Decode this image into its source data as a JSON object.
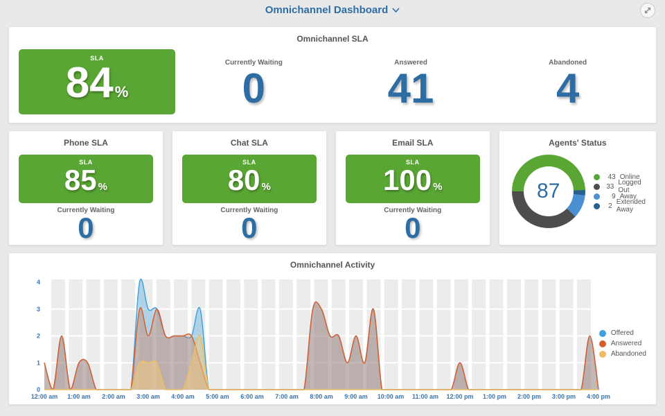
{
  "header": {
    "title": "Omnichannel Dashboard"
  },
  "sla_overview": {
    "title": "Omnichannel SLA",
    "gauge": {
      "label": "SLA",
      "value": "84",
      "unit": "%"
    },
    "stats": [
      {
        "label": "Currently Waiting",
        "value": "0"
      },
      {
        "label": "Answered",
        "value": "41"
      },
      {
        "label": "Abandoned",
        "value": "4"
      }
    ]
  },
  "channels": [
    {
      "title": "Phone SLA",
      "gauge_label": "SLA",
      "value": "85",
      "unit": "%",
      "waiting_label": "Currently Waiting",
      "waiting": "0"
    },
    {
      "title": "Chat SLA",
      "gauge_label": "SLA",
      "value": "80",
      "unit": "%",
      "waiting_label": "Currently Waiting",
      "waiting": "0"
    },
    {
      "title": "Email SLA",
      "gauge_label": "SLA",
      "value": "100",
      "unit": "%",
      "waiting_label": "Currently Waiting",
      "waiting": "0"
    }
  ],
  "agents": {
    "title": "Agents' Status",
    "total": "87",
    "legend": [
      {
        "value": 43,
        "label": "Online",
        "color": "#5aa634"
      },
      {
        "value": 33,
        "label": "Logged Out",
        "color": "#4d4d4d"
      },
      {
        "value": 9,
        "label": "Away",
        "color": "#4a90d2"
      },
      {
        "value": 2,
        "label": "Extended Away",
        "color": "#28608f"
      }
    ],
    "draw_order": [
      0,
      3,
      2,
      1
    ],
    "start_angle": 270
  },
  "chart_data": {
    "type": "area",
    "title": "Omnichannel Activity",
    "x_start": "12:00 am",
    "x_step_minutes": 15,
    "x_tick_labels": [
      "12:00 am",
      "1:00 am",
      "2:00 am",
      "3:00 am",
      "4:00 am",
      "5:00 am",
      "6:00 am",
      "7:00 am",
      "8:00 am",
      "9:00 am",
      "10:00 am",
      "11:00 am",
      "12:00 pm",
      "1:00 pm",
      "2:00 pm",
      "3:00 pm",
      "4:00 pm"
    ],
    "ylim": [
      0,
      4
    ],
    "y_ticks": [
      0,
      1,
      2,
      3,
      4
    ],
    "grid": "striped-vertical",
    "legend_position": "right",
    "series": [
      {
        "name": "Offered",
        "color": "#3fa2dc",
        "fill": "rgba(63,162,220,0.35)",
        "values": [
          1,
          0,
          2,
          0,
          1,
          1,
          0,
          0,
          0,
          0,
          0,
          4,
          3,
          3,
          2,
          2,
          2,
          2,
          3,
          0,
          0,
          0,
          0,
          0,
          0,
          0,
          0,
          0,
          0,
          0,
          0,
          3,
          3,
          2,
          2,
          1,
          2,
          1,
          3,
          0,
          0,
          0,
          0,
          0,
          0,
          0,
          0,
          0,
          1,
          0,
          0,
          0,
          0,
          0,
          0,
          0,
          0,
          0,
          0,
          0,
          0,
          0,
          0,
          2,
          0
        ]
      },
      {
        "name": "Answered",
        "color": "#d65f30",
        "fill": "rgba(214,95,48,0.30)",
        "values": [
          1,
          0,
          2,
          0,
          1,
          1,
          0,
          0,
          0,
          0,
          0,
          3,
          2,
          3,
          2,
          2,
          2,
          2,
          1,
          0,
          0,
          0,
          0,
          0,
          0,
          0,
          0,
          0,
          0,
          0,
          0,
          3,
          3,
          2,
          2,
          1,
          2,
          1,
          3,
          0,
          0,
          0,
          0,
          0,
          0,
          0,
          0,
          0,
          1,
          0,
          0,
          0,
          0,
          0,
          0,
          0,
          0,
          0,
          0,
          0,
          0,
          0,
          0,
          2,
          0
        ]
      },
      {
        "name": "Abandoned",
        "color": "#f0bc62",
        "fill": "rgba(243,200,120,0.50)",
        "values": [
          0,
          0,
          0,
          0,
          0,
          0,
          0,
          0,
          0,
          0,
          0,
          1,
          1,
          1,
          0,
          0,
          0,
          1,
          2,
          0,
          0,
          0,
          0,
          0,
          0,
          0,
          0,
          0,
          0,
          0,
          0,
          0,
          0,
          0,
          0,
          0,
          0,
          0,
          0,
          0,
          0,
          0,
          0,
          0,
          0,
          0,
          0,
          0,
          0,
          0,
          0,
          0,
          0,
          0,
          0,
          0,
          0,
          0,
          0,
          0,
          0,
          0,
          0,
          0,
          0
        ]
      }
    ]
  }
}
